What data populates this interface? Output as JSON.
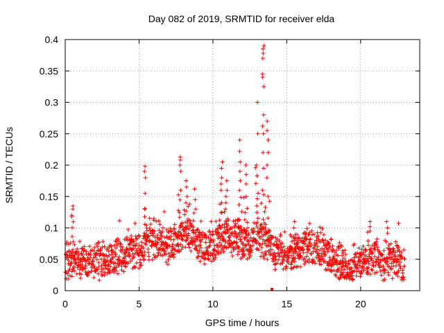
{
  "chart_data": {
    "type": "scatter",
    "title": "Day 082 of 2019, SRMTID for receiver elda",
    "xlabel": "GPS time / hours",
    "ylabel": "SRMTID / TECUs",
    "xlim": [
      0,
      24
    ],
    "ylim": [
      0,
      0.4
    ],
    "xticks": [
      "0",
      "5",
      "10",
      "15",
      "20"
    ],
    "yticks": [
      "0",
      "0.05",
      "0.1",
      "0.15",
      "0.2",
      "0.25",
      "0.3",
      "0.35",
      "0.4"
    ],
    "grid": true,
    "marker": "+",
    "color": "#ff0000",
    "trend": {
      "x": [
        0,
        0.5,
        1,
        1.5,
        2,
        2.5,
        3,
        3.5,
        4,
        4.5,
        5,
        5.5,
        6,
        6.5,
        7,
        7.5,
        8,
        8.5,
        9,
        9.5,
        10,
        10.5,
        11,
        11.5,
        12,
        12.5,
        13,
        13.5,
        14,
        14.5,
        15,
        15.5,
        16,
        16.5,
        17,
        17.5,
        18,
        18.5,
        19,
        19.5,
        20,
        20.5,
        21,
        21.5,
        22,
        22.5,
        23
      ],
      "y": [
        0.045,
        0.055,
        0.05,
        0.045,
        0.05,
        0.045,
        0.05,
        0.055,
        0.06,
        0.06,
        0.06,
        0.075,
        0.08,
        0.075,
        0.07,
        0.08,
        0.09,
        0.085,
        0.075,
        0.07,
        0.07,
        0.08,
        0.085,
        0.085,
        0.08,
        0.075,
        0.09,
        0.08,
        0.065,
        0.06,
        0.055,
        0.06,
        0.065,
        0.07,
        0.065,
        0.06,
        0.055,
        0.045,
        0.035,
        0.04,
        0.045,
        0.05,
        0.05,
        0.045,
        0.05,
        0.05,
        0.04
      ]
    },
    "spikes": [
      {
        "x": 0.5,
        "y": [
          0.135,
          0.13,
          0.12,
          0.118
        ]
      },
      {
        "x": 5.4,
        "y": [
          0.198,
          0.19,
          0.18,
          0.155,
          0.13
        ]
      },
      {
        "x": 7.8,
        "y": [
          0.213,
          0.208,
          0.2,
          0.19,
          0.16
        ]
      },
      {
        "x": 8.2,
        "y": [
          0.175,
          0.165,
          0.15,
          0.14
        ]
      },
      {
        "x": 8.8,
        "y": [
          0.162,
          0.145,
          0.13
        ]
      },
      {
        "x": 10.6,
        "y": [
          0.205,
          0.195,
          0.18,
          0.17,
          0.16,
          0.14
        ]
      },
      {
        "x": 10.9,
        "y": [
          0.175,
          0.16,
          0.15,
          0.14,
          0.13
        ]
      },
      {
        "x": 11.8,
        "y": [
          0.24,
          0.222,
          0.205,
          0.19,
          0.175,
          0.16
        ]
      },
      {
        "x": 12.2,
        "y": [
          0.2,
          0.185,
          0.17,
          0.15
        ]
      },
      {
        "x": 13.0,
        "y": [
          0.3,
          0.25,
          0.2
        ]
      },
      {
        "x": 13.4,
        "y": [
          0.39,
          0.385,
          0.378,
          0.37,
          0.345,
          0.34,
          0.325,
          0.28,
          0.262,
          0.25,
          0.22,
          0.195,
          0.16
        ]
      },
      {
        "x": 13.7,
        "y": [
          0.27,
          0.255,
          0.24,
          0.22,
          0.2,
          0.18,
          0.15
        ]
      },
      {
        "x": 15.5,
        "y": [
          0.11,
          0.1
        ]
      },
      {
        "x": 20.6,
        "y": [
          0.11,
          0.102
        ]
      },
      {
        "x": 21.8,
        "y": [
          0.11,
          0.1
        ]
      }
    ],
    "marker_at_zero": {
      "x": 14.0,
      "y": 0
    }
  }
}
